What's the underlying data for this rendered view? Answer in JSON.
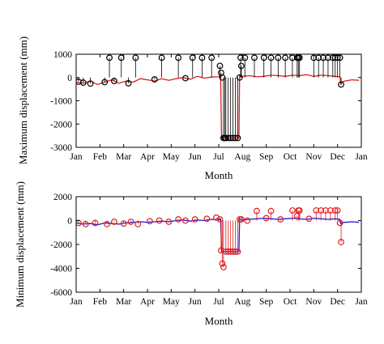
{
  "chart_data": [
    {
      "type": "line",
      "xlabel": "Month",
      "ylabel": "Maximum displacement (mm)",
      "xlim": [
        0,
        12
      ],
      "ylim": [
        -3000,
        1000
      ],
      "yticks": [
        1000,
        0,
        -1000,
        -2000,
        -3000
      ],
      "xticks": [
        "Jan",
        "Feb",
        "Mar",
        "Apr",
        "May",
        "Jun",
        "Jul",
        "Aug",
        "Sep",
        "Oct",
        "Nov",
        "Dec",
        "Jan"
      ],
      "grid": false,
      "series": [
        {
          "color": "#e11d1d",
          "style": "line",
          "x": [
            0,
            0.3,
            0.6,
            0.9,
            1.2,
            1.5,
            1.8,
            2.1,
            2.4,
            2.7,
            3.0,
            3.3,
            3.6,
            3.9,
            4.2,
            4.5,
            4.8,
            5.1,
            5.4,
            5.7,
            6.0,
            6.08,
            6.12,
            6.16,
            6.4,
            6.7,
            6.85,
            6.88,
            6.92,
            7.0,
            7.3,
            7.6,
            7.9,
            8.2,
            8.5,
            8.8,
            9.1,
            9.4,
            9.7,
            10.0,
            10.3,
            10.6,
            10.9,
            11.1,
            11.14,
            11.18,
            11.3,
            11.6,
            11.9
          ],
          "y": [
            -200,
            -250,
            -150,
            -300,
            -200,
            -100,
            -250,
            -150,
            -200,
            -50,
            -100,
            -150,
            -50,
            -120,
            -50,
            0,
            -80,
            50,
            -30,
            20,
            30,
            100,
            -2600,
            -2600,
            -2600,
            -2600,
            -2600,
            100,
            50,
            50,
            80,
            30,
            50,
            100,
            80,
            50,
            100,
            80,
            120,
            50,
            100,
            80,
            50,
            30,
            -300,
            -200,
            -150,
            -100,
            -120
          ]
        },
        {
          "name": "",
          "color": "#000000",
          "style": "circles",
          "x": [
            0.1,
            0.3,
            0.6,
            1.2,
            1.4,
            1.6,
            1.9,
            2.2,
            2.5,
            3.3,
            3.6,
            4.3,
            4.6,
            4.9,
            5.3,
            5.7,
            6.05,
            6.1,
            6.15,
            6.2,
            6.25,
            6.3,
            6.4,
            6.5,
            6.6,
            6.7,
            6.8,
            6.88,
            6.92,
            6.95,
            7.1,
            7.5,
            7.9,
            8.2,
            8.5,
            8.8,
            9.1,
            9.3,
            9.35,
            9.4,
            10.0,
            10.2,
            10.4,
            10.6,
            10.8,
            10.9,
            11.0,
            11.1,
            11.15
          ],
          "y": [
            -180,
            -220,
            -260,
            -200,
            850,
            -150,
            850,
            -250,
            850,
            -80,
            850,
            850,
            -30,
            850,
            850,
            850,
            500,
            200,
            0,
            -2600,
            -2600,
            -2600,
            -2600,
            -2600,
            -2600,
            -2600,
            -2600,
            0,
            850,
            500,
            850,
            850,
            850,
            850,
            850,
            850,
            850,
            850,
            850,
            850,
            850,
            850,
            850,
            850,
            850,
            850,
            850,
            850,
            -300
          ]
        }
      ]
    },
    {
      "type": "line",
      "xlabel": "Month",
      "ylabel": "Minimum displacement (mm)",
      "xlim": [
        0,
        12
      ],
      "ylim": [
        -6000,
        2000
      ],
      "yticks": [
        2000,
        0,
        -2000,
        -4000,
        -6000
      ],
      "xticks": [
        "Jan",
        "Feb",
        "Mar",
        "Apr",
        "May",
        "Jun",
        "Jul",
        "Aug",
        "Sep",
        "Oct",
        "Nov",
        "Dec",
        "Jan"
      ],
      "grid": false,
      "series": [
        {
          "color": "#1a1adb",
          "style": "line",
          "x": [
            0,
            0.3,
            0.6,
            0.9,
            1.2,
            1.5,
            1.8,
            2.1,
            2.4,
            2.7,
            3.0,
            3.3,
            3.6,
            3.9,
            4.2,
            4.5,
            4.8,
            5.1,
            5.4,
            5.7,
            6.0,
            6.08,
            6.12,
            6.16,
            6.4,
            6.7,
            6.85,
            6.88,
            6.92,
            7.0,
            7.3,
            7.6,
            7.9,
            8.2,
            8.5,
            8.8,
            9.1,
            9.4,
            9.7,
            10.0,
            10.3,
            10.6,
            10.9,
            11.1,
            11.14,
            11.18,
            11.3,
            11.6,
            11.9
          ],
          "y": [
            -200,
            -300,
            -250,
            -350,
            -200,
            -250,
            -300,
            -200,
            -150,
            -100,
            -150,
            -100,
            -50,
            -100,
            0,
            50,
            -50,
            50,
            0,
            100,
            50,
            150,
            -2600,
            -2600,
            -2600,
            -2600,
            -2600,
            150,
            100,
            50,
            100,
            150,
            200,
            150,
            100,
            150,
            200,
            150,
            100,
            200,
            150,
            100,
            150,
            100,
            -300,
            -200,
            -150,
            -100,
            -150
          ]
        },
        {
          "name": "",
          "color": "#e11d1d",
          "style": "circles",
          "x": [
            0.1,
            0.4,
            0.8,
            1.3,
            1.6,
            2.0,
            2.3,
            2.6,
            3.1,
            3.5,
            3.9,
            4.3,
            4.6,
            5.0,
            5.5,
            5.9,
            6.05,
            6.1,
            6.15,
            6.2,
            6.3,
            6.4,
            6.5,
            6.6,
            6.7,
            6.8,
            6.88,
            6.95,
            7.2,
            7.6,
            8.0,
            8.2,
            8.6,
            9.1,
            9.3,
            9.35,
            9.4,
            9.8,
            10.1,
            10.3,
            10.5,
            10.7,
            10.9,
            11.0,
            11.1,
            11.15
          ],
          "y": [
            -200,
            -300,
            -200,
            -300,
            -100,
            -250,
            -100,
            -300,
            -50,
            0,
            -100,
            100,
            0,
            100,
            150,
            250,
            100,
            -2500,
            -3600,
            -3900,
            -2600,
            -2600,
            -2600,
            -2600,
            -2600,
            -2600,
            100,
            100,
            0,
            800,
            200,
            800,
            100,
            850,
            400,
            850,
            850,
            150,
            850,
            850,
            850,
            850,
            850,
            850,
            -200,
            -1800
          ]
        }
      ]
    }
  ]
}
